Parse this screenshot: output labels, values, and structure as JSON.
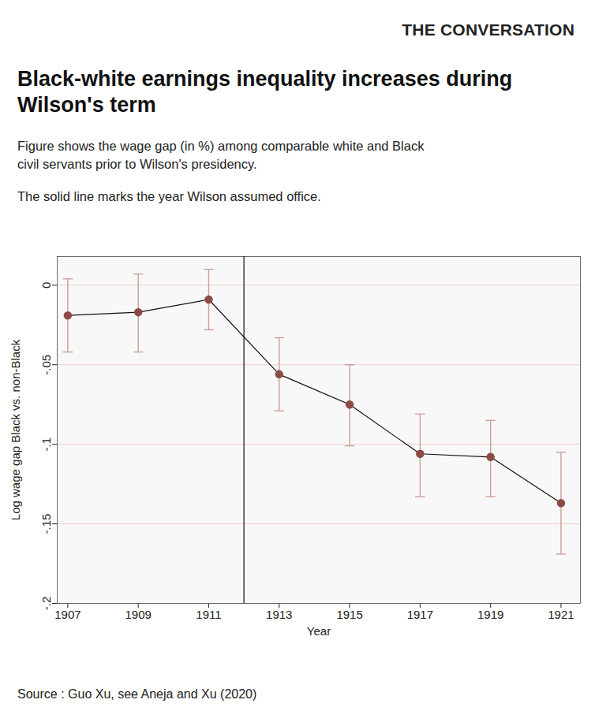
{
  "brand": "THE CONVERSATION",
  "chart_data": {
    "type": "line",
    "title": "Black-white earnings inequality increases during Wilson's term",
    "subtitle": [
      "Figure shows the wage gap (in %) among comparable white and Black civil servants prior to Wilson's presidency.",
      "The solid line marks the year Wilson assumed office."
    ],
    "source": "Source : Guo Xu, see Aneja and Xu (2020)",
    "x_label": "Year",
    "y_label": "Log wage gap Black vs. non-Black",
    "x": [
      1907,
      1909,
      1911,
      1913,
      1915,
      1917,
      1919,
      1921
    ],
    "values": [
      -0.019,
      -0.017,
      -0.009,
      -0.056,
      -0.075,
      -0.106,
      -0.108,
      -0.137
    ],
    "error_low": [
      -0.042,
      -0.042,
      -0.028,
      -0.079,
      -0.101,
      -0.133,
      -0.133,
      -0.169
    ],
    "error_high": [
      0.004,
      0.007,
      0.01,
      -0.033,
      -0.05,
      -0.081,
      -0.085,
      -0.105
    ],
    "vline": 1912,
    "xlim": [
      1906.7,
      1921.55
    ],
    "ylim": [
      -0.2,
      0.018
    ],
    "xticks": [
      1907,
      1909,
      1911,
      1913,
      1915,
      1917,
      1919,
      1921
    ],
    "yticks": [
      0,
      {
        "value": -0.05,
        "label": "-.05"
      },
      {
        "value": -0.1,
        "label": "-.1"
      },
      {
        "value": -0.15,
        "label": "-.15"
      },
      {
        "value": -0.2,
        "label": "-.2"
      }
    ],
    "grid": true,
    "color": "#8c4b45",
    "marker": "circle"
  }
}
